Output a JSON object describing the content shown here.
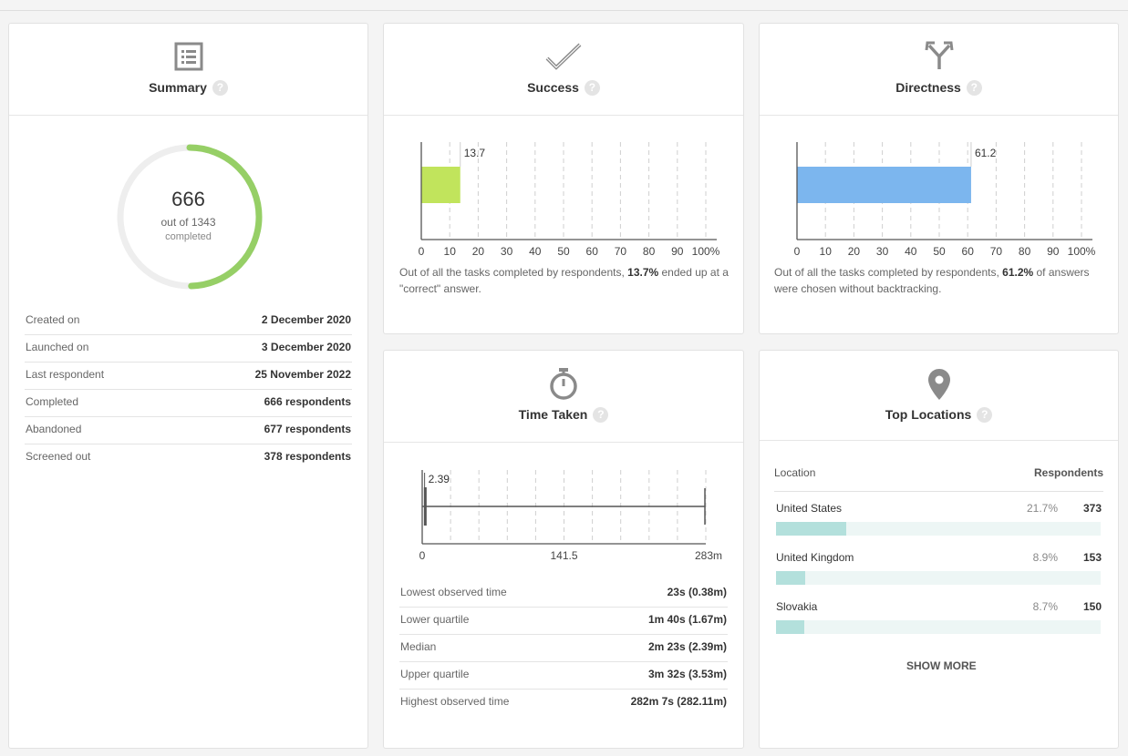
{
  "summary": {
    "title": "Summary",
    "help": "?",
    "icon": "list-icon",
    "completed_count": "666",
    "out_of": "out of 1343",
    "completed_label": "completed",
    "completion_fraction": 0.496,
    "ring_color": "#96cf66",
    "rows": [
      {
        "label": "Created on",
        "value": "2 December 2020"
      },
      {
        "label": "Launched on",
        "value": "3 December 2020"
      },
      {
        "label": "Last respondent",
        "value": "25 November 2022"
      },
      {
        "label": "Completed",
        "value": "666 respondents"
      },
      {
        "label": "Abandoned",
        "value": "677 respondents"
      },
      {
        "label": "Screened out",
        "value": "378 respondents"
      }
    ]
  },
  "success": {
    "title": "Success",
    "help": "?",
    "icon": "checkmark-icon",
    "bar_value": 13.7,
    "bar_label": "13.7",
    "bar_color": "#c1e45c",
    "ticks": [
      "0",
      "10",
      "20",
      "30",
      "40",
      "50",
      "60",
      "70",
      "80",
      "90",
      "100%"
    ],
    "desc_pre": "Out of all the tasks completed by respondents, ",
    "desc_bold": "13.7%",
    "desc_post": " ended up at a \"correct\" answer."
  },
  "directness": {
    "title": "Directness",
    "help": "?",
    "icon": "fork-arrows-icon",
    "bar_value": 61.2,
    "bar_label": "61.2",
    "bar_color": "#7cb6ee",
    "ticks": [
      "0",
      "10",
      "20",
      "30",
      "40",
      "50",
      "60",
      "70",
      "80",
      "90",
      "100%"
    ],
    "desc_pre": "Out of all the tasks completed by respondents, ",
    "desc_bold": "61.2%",
    "desc_post": " of answers were chosen without backtracking."
  },
  "time_taken": {
    "title": "Time Taken",
    "help": "?",
    "icon": "stopwatch-icon",
    "median_value": 2.39,
    "median_label": "2.39",
    "max_value": 283,
    "lower_quartile_value": 1.67,
    "upper_quartile_value": 3.53,
    "lowest_value": 0.38,
    "highest_value": 282.11,
    "ticks": [
      "0",
      "141.5",
      "283m"
    ],
    "rows": [
      {
        "label": "Lowest observed time",
        "value": "23s (0.38m)"
      },
      {
        "label": "Lower quartile",
        "value": "1m 40s (1.67m)"
      },
      {
        "label": "Median",
        "value": "2m 23s (2.39m)"
      },
      {
        "label": "Upper quartile",
        "value": "3m 32s (3.53m)"
      },
      {
        "label": "Highest observed time",
        "value": "282m 7s (282.11m)"
      }
    ]
  },
  "top_locations": {
    "title": "Top Locations",
    "help": "?",
    "icon": "map-pin-icon",
    "col_location": "Location",
    "col_respondents": "Respondents",
    "items": [
      {
        "name": "United States",
        "pct": "21.7%",
        "count": "373",
        "fraction": 0.217
      },
      {
        "name": "United Kingdom",
        "pct": "8.9%",
        "count": "153",
        "fraction": 0.089
      },
      {
        "name": "Slovakia",
        "pct": "8.7%",
        "count": "150",
        "fraction": 0.087
      }
    ],
    "show_more": "SHOW MORE"
  }
}
